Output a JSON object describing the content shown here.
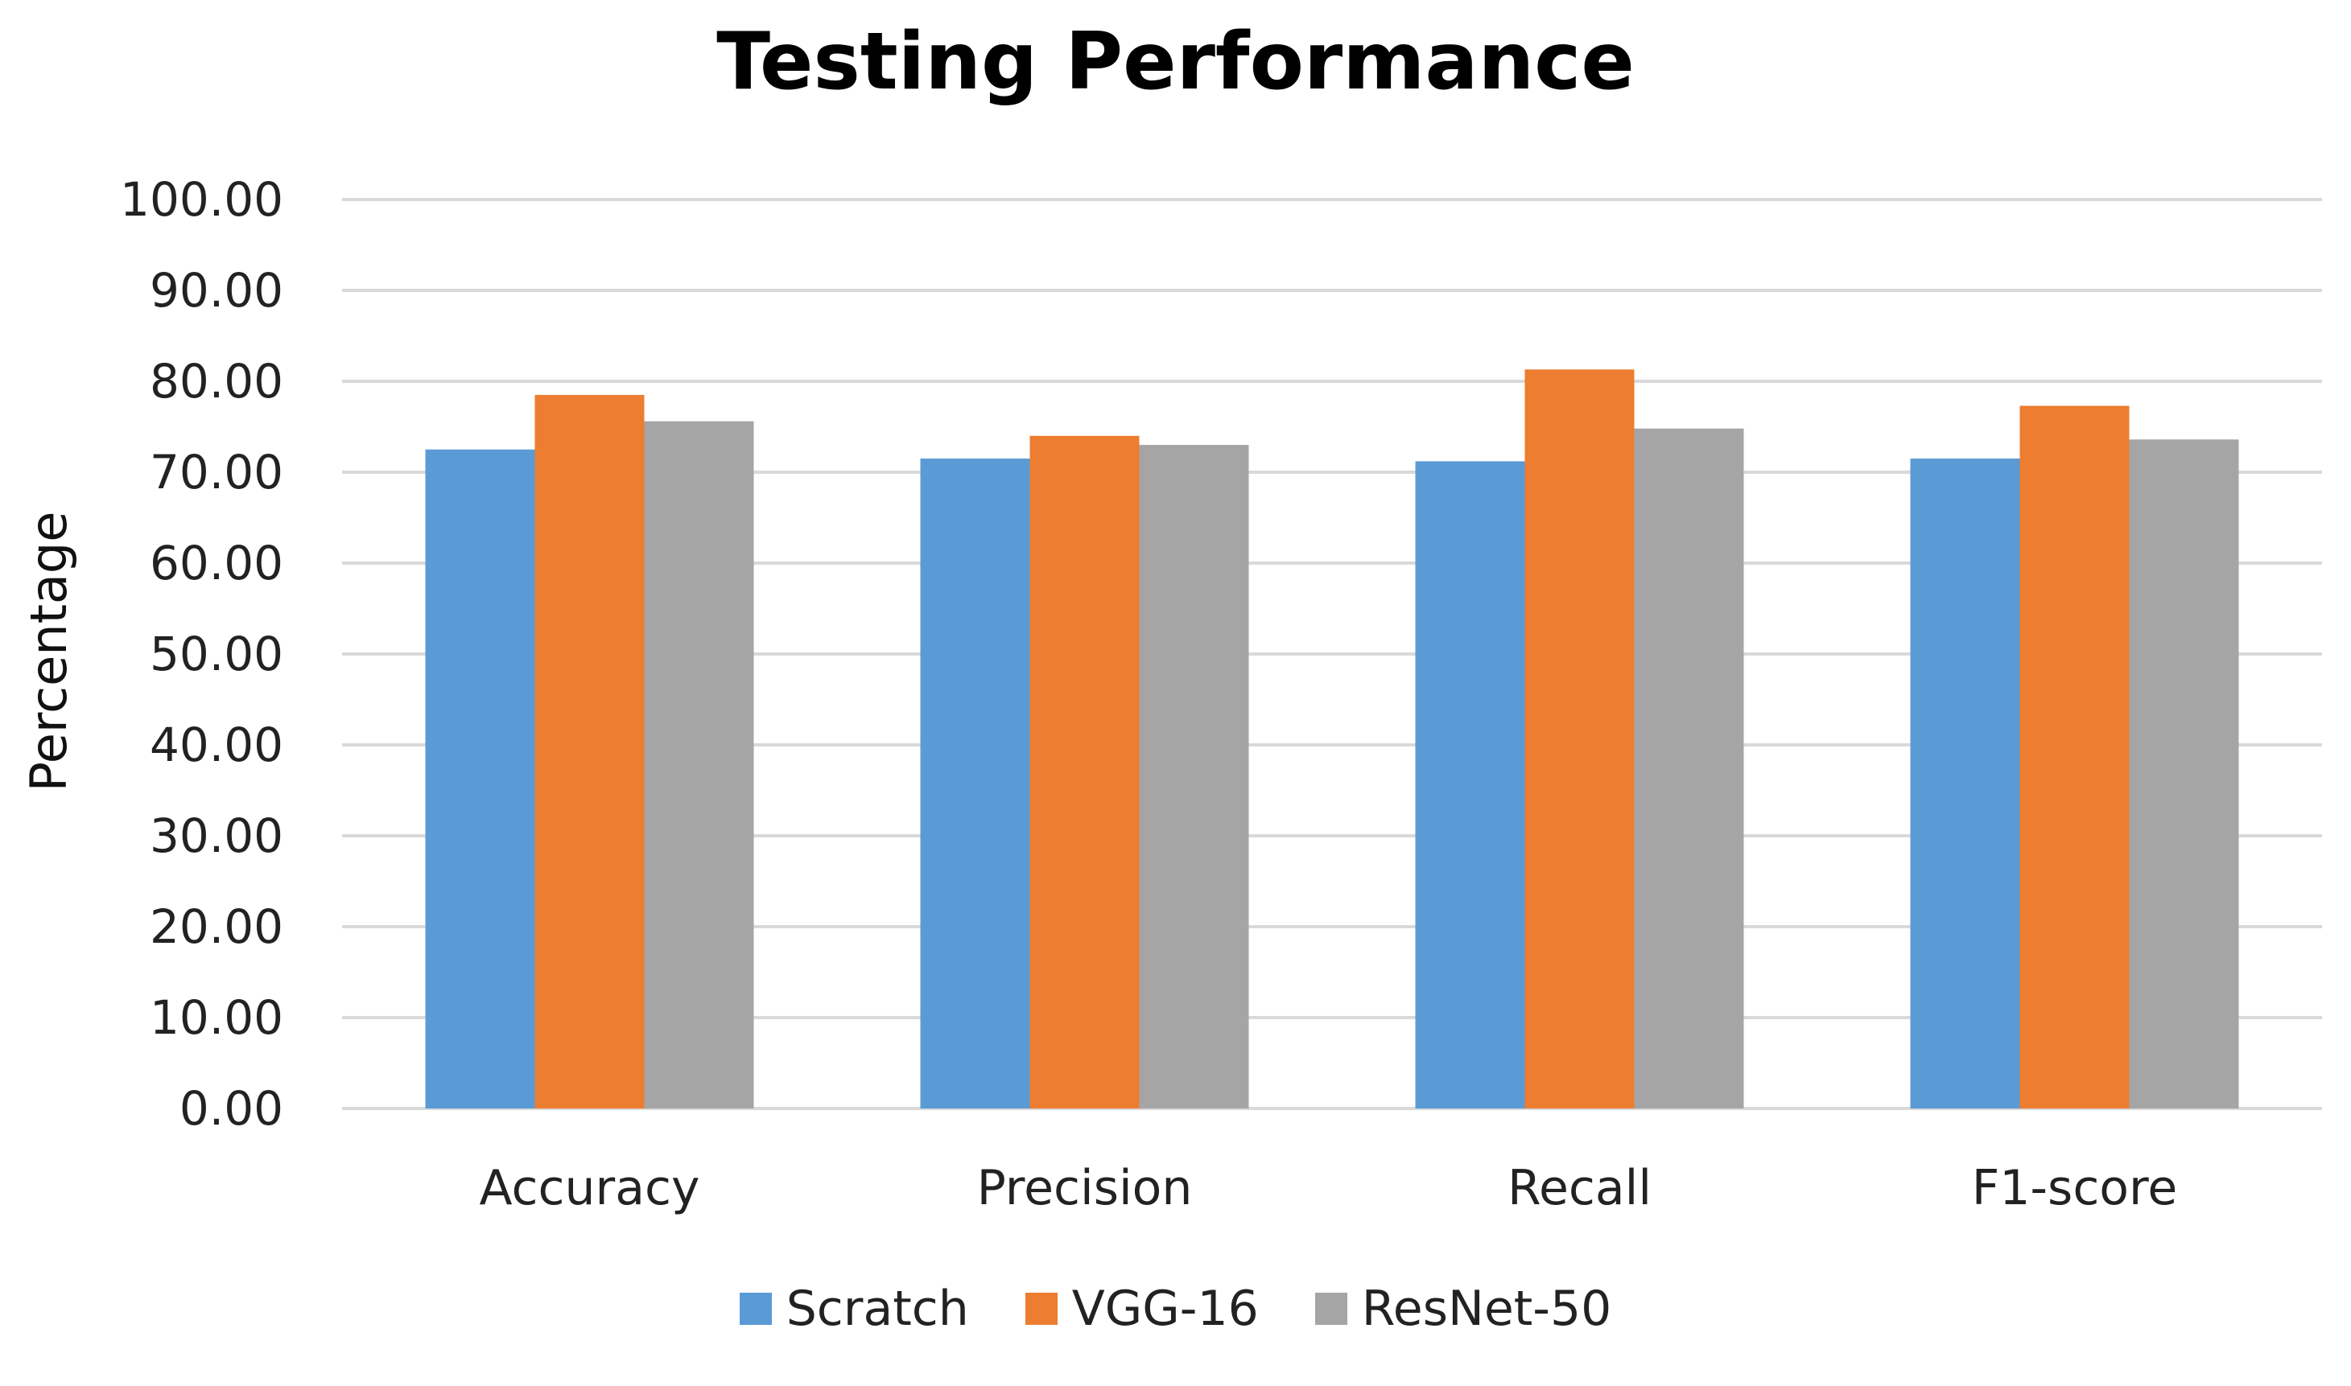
{
  "chart_data": {
    "type": "bar",
    "title": "Testing Performance",
    "xlabel": "",
    "ylabel": "Percentage",
    "ylim": [
      0,
      100
    ],
    "yticks": [
      "0.00",
      "10.00",
      "20.00",
      "30.00",
      "40.00",
      "50.00",
      "60.00",
      "70.00",
      "80.00",
      "90.00",
      "100.00"
    ],
    "grid": true,
    "legend_position": "bottom",
    "categories": [
      "Accuracy",
      "Precision",
      "Recall",
      "F1-score"
    ],
    "series": [
      {
        "name": "Scratch",
        "color": "#5B9BD5",
        "values": [
          72.5,
          71.5,
          71.2,
          71.5
        ]
      },
      {
        "name": "VGG-16",
        "color": "#ED7D31",
        "values": [
          78.5,
          74.0,
          81.3,
          77.3
        ]
      },
      {
        "name": "ResNet-50",
        "color": "#A5A5A5",
        "values": [
          75.6,
          73.0,
          74.8,
          73.6
        ]
      }
    ]
  }
}
